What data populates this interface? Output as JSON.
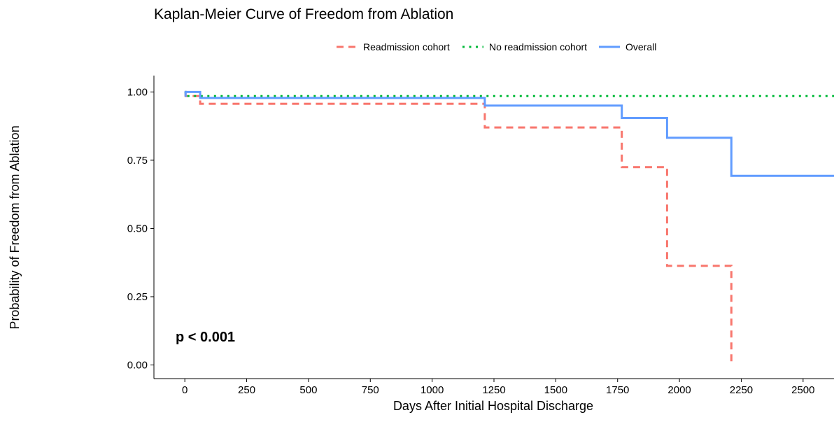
{
  "chart_data": {
    "type": "line",
    "subtype": "step",
    "title": "Kaplan-Meier Curve of Freedom from Ablation",
    "xlabel": "Days After Initial Hospital Discharge",
    "ylabel": "Probability of Freedom from Ablation",
    "xlim": [
      -125,
      2625
    ],
    "ylim": [
      -0.05,
      1.06
    ],
    "xticks": [
      0,
      250,
      500,
      750,
      1000,
      1250,
      1500,
      1750,
      2000,
      2250,
      2500
    ],
    "yticks": [
      0.0,
      0.25,
      0.5,
      0.75,
      1.0
    ],
    "ytick_labels": [
      "0.00",
      "0.25",
      "0.50",
      "0.75",
      "1.00"
    ],
    "grid": false,
    "legend_position": "top",
    "annotation": "p < 0.001",
    "series": [
      {
        "name": "Readmission cohort",
        "color": "#F8766D",
        "dash": "dashed",
        "x": [
          0,
          3,
          3,
          62,
          62,
          1213,
          1213,
          1767,
          1767,
          1950,
          1950,
          2210,
          2210
        ],
        "y": [
          1.0,
          1.0,
          0.985,
          0.985,
          0.957,
          0.957,
          0.87,
          0.87,
          0.725,
          0.725,
          0.363,
          0.363,
          0.0
        ]
      },
      {
        "name": "No readmission cohort",
        "color": "#00BA38",
        "dash": "dotted",
        "x": [
          0,
          3,
          3,
          2625
        ],
        "y": [
          1.0,
          1.0,
          0.985,
          0.985
        ]
      },
      {
        "name": "Overall",
        "color": "#619CFF",
        "dash": "solid",
        "x": [
          0,
          3,
          3,
          7,
          7,
          62,
          62,
          1213,
          1213,
          1767,
          1767,
          1950,
          1950,
          2210,
          2210,
          2625
        ],
        "y": [
          0.985,
          0.985,
          1.0,
          1.0,
          1.0,
          1.0,
          0.978,
          0.978,
          0.95,
          0.95,
          0.905,
          0.905,
          0.832,
          0.832,
          0.693,
          0.693
        ]
      }
    ]
  }
}
